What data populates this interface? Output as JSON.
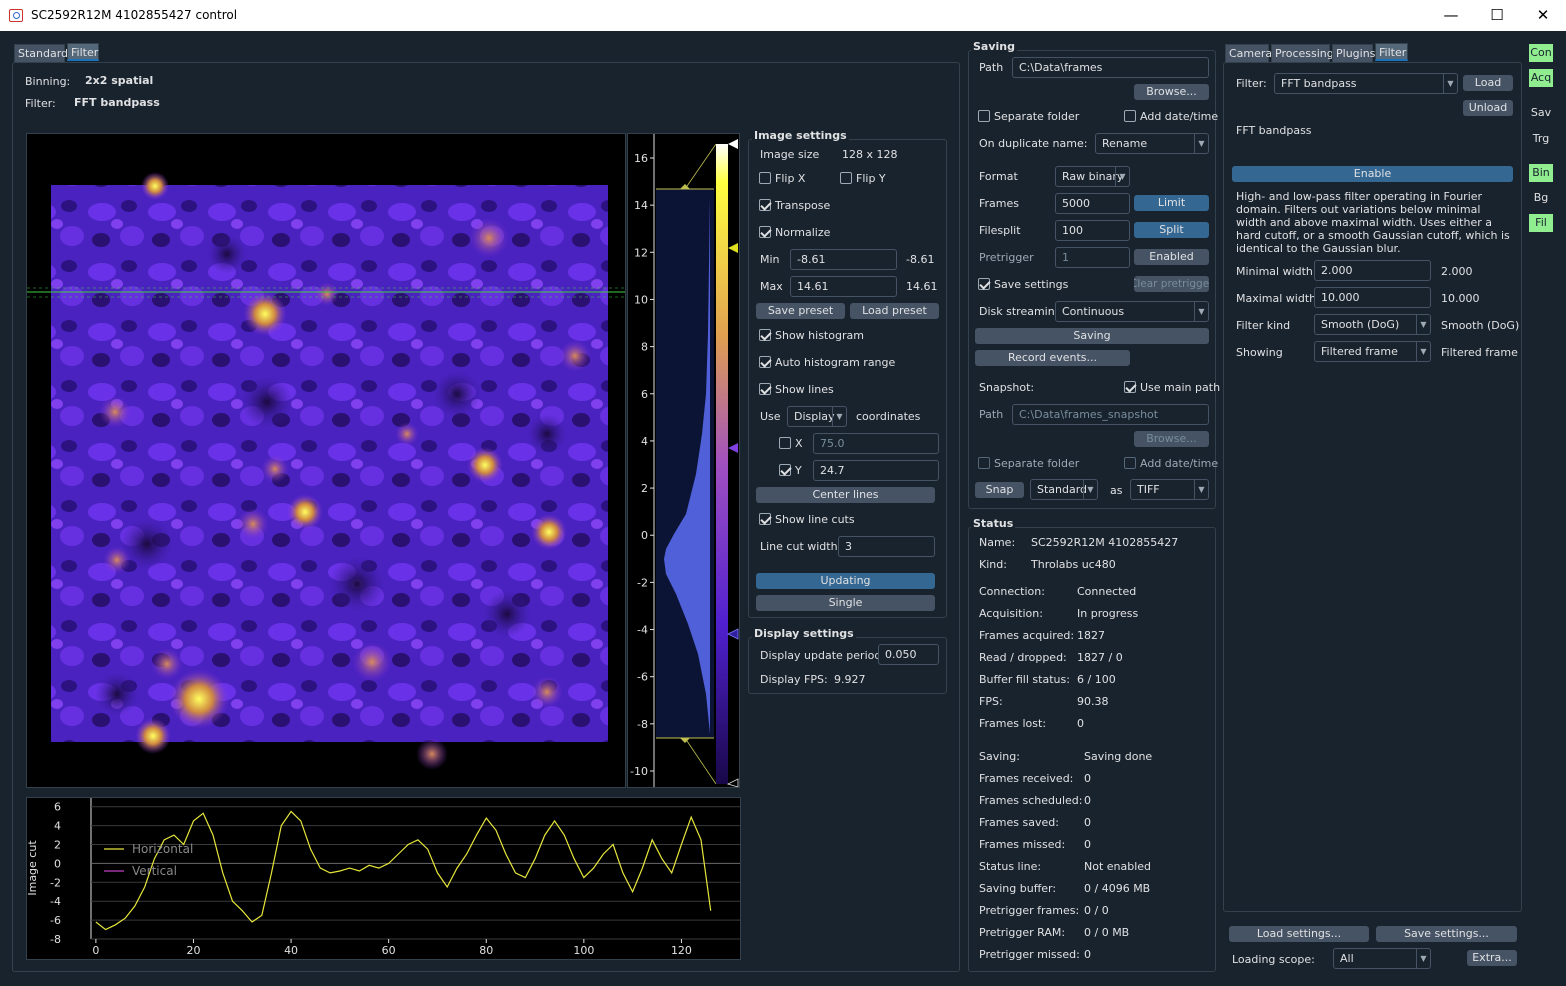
{
  "window": {
    "title": "SC2592R12M 4102855427 control"
  },
  "left_tabs": [
    "Standard",
    "Filter"
  ],
  "info": {
    "binning_label": "Binning:",
    "binning_value": "2x2 spatial",
    "filter_label": "Filter:",
    "filter_value": "FFT bandpass"
  },
  "colorbar": {
    "ticks": [
      "16",
      "14",
      "12",
      "10",
      "8",
      "6",
      "4",
      "2",
      "0",
      "-2",
      "-4",
      "-6",
      "-8",
      "-10"
    ]
  },
  "linecut": {
    "ylabel": "Image cut",
    "yticks": [
      "6",
      "4",
      "2",
      "0",
      "-2",
      "-4",
      "-6",
      "-8"
    ],
    "xticks": [
      "0",
      "20",
      "40",
      "60",
      "80",
      "100",
      "120"
    ],
    "legend": [
      {
        "name": "Horizontal",
        "color": "#e6e63c"
      },
      {
        "name": "Vertical",
        "color": "#c040c0"
      }
    ],
    "ylim": [
      -8,
      6.5
    ],
    "xlim": [
      -1,
      132
    ]
  },
  "chart_data": {
    "type": "line",
    "ylabel": "Image cut",
    "xlim": [
      -1,
      132
    ],
    "ylim": [
      -8,
      6.5
    ],
    "series": [
      {
        "name": "Horizontal",
        "x": [
          0,
          2,
          4,
          6,
          8,
          10,
          12,
          14,
          16,
          18,
          20,
          22,
          24,
          26,
          28,
          30,
          32,
          34,
          36,
          38,
          40,
          42,
          44,
          46,
          48,
          50,
          52,
          54,
          56,
          58,
          60,
          62,
          64,
          66,
          68,
          70,
          72,
          74,
          76,
          78,
          80,
          82,
          84,
          86,
          88,
          90,
          92,
          94,
          96,
          98,
          100,
          102,
          104,
          106,
          108,
          110,
          112,
          114,
          116,
          118,
          120,
          122,
          124,
          126
        ],
        "values": [
          -6.2,
          -7.0,
          -6.5,
          -5.8,
          -4.5,
          -2.5,
          0.5,
          2.5,
          3.0,
          2.0,
          4.5,
          5.3,
          3.0,
          -1.0,
          -4.0,
          -5.0,
          -6.2,
          -5.5,
          -1.0,
          4.0,
          5.5,
          4.5,
          1.5,
          -0.5,
          -1.0,
          -0.8,
          -0.5,
          -0.8,
          -0.2,
          -0.5,
          0.0,
          1.0,
          2.0,
          2.5,
          1.5,
          -1.0,
          -2.5,
          -0.5,
          1.0,
          3.0,
          4.8,
          3.5,
          1.0,
          -1.0,
          -1.5,
          0.5,
          3.0,
          4.5,
          3.0,
          0.5,
          -1.5,
          -0.5,
          1.0,
          2.0,
          -1.0,
          -3.0,
          -0.5,
          2.5,
          0.5,
          -1.0,
          2.0,
          4.9,
          2.5,
          -5.0
        ]
      },
      {
        "name": "Vertical",
        "x": [],
        "values": []
      }
    ]
  },
  "image_settings": {
    "title": "Image settings",
    "size_label": "Image size",
    "size_value": "128 x 128",
    "flipx": "Flip X",
    "flipy": "Flip Y",
    "transpose": "Transpose",
    "normalize": "Normalize",
    "min_label": "Min",
    "min_value": "-8.61",
    "min_readout": "-8.61",
    "max_label": "Max",
    "max_value": "14.61",
    "max_readout": "14.61",
    "save_preset": "Save preset",
    "load_preset": "Load preset",
    "show_histogram": "Show histogram",
    "auto_histogram": "Auto histogram range",
    "show_lines": "Show lines",
    "use_label": "Use",
    "use_value": "Display",
    "coords_label": "coordinates",
    "x_label": "X",
    "x_value": "75.0",
    "y_label": "Y",
    "y_value": "24.7",
    "center_lines": "Center lines",
    "show_line_cuts": "Show line cuts",
    "line_cut_width_label": "Line cut width",
    "line_cut_width_value": "3",
    "updating": "Updating",
    "single": "Single"
  },
  "display_settings": {
    "title": "Display settings",
    "period_label": "Display update period:",
    "period_value": "0.050",
    "fps_label": "Display FPS:",
    "fps_value": "9.927"
  },
  "saving": {
    "title": "Saving",
    "path_label": "Path",
    "path_value": "C:\\Data\\frames",
    "browse": "Browse...",
    "separate_folder": "Separate folder",
    "add_datetime": "Add date/time",
    "dup_label": "On duplicate name:",
    "dup_value": "Rename",
    "format_label": "Format",
    "format_value": "Raw binary",
    "frames_label": "Frames",
    "frames_value": "5000",
    "limit": "Limit",
    "filesplit_label": "Filesplit",
    "filesplit_value": "100",
    "split": "Split",
    "pretrigger_label": "Pretrigger",
    "pretrigger_value": "1",
    "enabled": "Enabled",
    "save_settings": "Save settings",
    "clear_pretrigger": "Clear pretrigger",
    "disk_label": "Disk streaming",
    "disk_value": "Continuous",
    "saving_btn": "Saving",
    "record_events": "Record events...",
    "snapshot_label": "Snapshot:",
    "use_main_path": "Use main path",
    "snap_path_label": "Path",
    "snap_path_value": "C:\\Data\\frames_snapshot",
    "snap_browse": "Browse...",
    "snap_separate": "Separate folder",
    "snap_datetime": "Add date/time",
    "snap_btn": "Snap",
    "snap_mode": "Standard",
    "as_label": "as",
    "snap_format": "TIFF"
  },
  "status": {
    "title": "Status",
    "rows1": [
      {
        "k": "Name:",
        "v": "SC2592R12M 4102855427"
      },
      {
        "k": "Kind:",
        "v": "Throlabs uc480"
      }
    ],
    "rows2": [
      {
        "k": "Connection:",
        "v": "Connected"
      },
      {
        "k": "Acquisition:",
        "v": "In progress"
      },
      {
        "k": "Frames acquired:",
        "v": "1827"
      },
      {
        "k": "Read / dropped:",
        "v": "1827 / 0"
      },
      {
        "k": "Buffer fill status:",
        "v": "6 / 100"
      },
      {
        "k": "FPS:",
        "v": "90.38"
      },
      {
        "k": "Frames lost:",
        "v": "0"
      }
    ],
    "rows3": [
      {
        "k": "Saving:",
        "v": "Saving done"
      },
      {
        "k": "Frames received:",
        "v": "0"
      },
      {
        "k": "Frames scheduled:",
        "v": "0"
      },
      {
        "k": "Frames saved:",
        "v": "0"
      },
      {
        "k": "Frames missed:",
        "v": "0"
      },
      {
        "k": "Status line:",
        "v": "Not enabled"
      },
      {
        "k": "Saving buffer:",
        "v": "0 / 4096 MB"
      },
      {
        "k": "Pretrigger frames:",
        "v": "0 / 0"
      },
      {
        "k": "Pretrigger RAM:",
        "v": "0 / 0 MB"
      },
      {
        "k": "Pretrigger missed:",
        "v": "0"
      }
    ]
  },
  "right_tabs": [
    "Camera",
    "Processing",
    "Plugins",
    "Filter"
  ],
  "filter_panel": {
    "filter_label": "Filter:",
    "filter_value": "FFT bandpass",
    "load": "Load",
    "unload": "Unload",
    "name": "FFT bandpass",
    "enable": "Enable",
    "description": "High- and low-pass filter operating in Fourier domain. Filters out variations below minimal width and above maximal width. Uses either a hard cutoff, or a smooth Gaussian cutoff, which is identical to the Gaussian blur.",
    "minw_label": "Minimal width",
    "minw_value": "2.000",
    "minw_readout": "2.000",
    "maxw_label": "Maximal width",
    "maxw_value": "10.000",
    "maxw_readout": "10.000",
    "kind_label": "Filter kind",
    "kind_value": "Smooth (DoG)",
    "kind_readout": "Smooth (DoG)",
    "showing_label": "Showing",
    "showing_value": "Filtered frame",
    "showing_readout": "Filtered frame"
  },
  "bottom": {
    "load_settings": "Load settings...",
    "save_settings": "Save settings...",
    "scope_label": "Loading scope:",
    "scope_value": "All",
    "extra": "Extra..."
  },
  "side_indicators": [
    {
      "label": "Con",
      "on": true
    },
    {
      "label": "Acq",
      "on": true
    },
    {
      "label": "Sav",
      "on": false
    },
    {
      "label": "Trg",
      "on": false
    },
    {
      "label": "Bin",
      "on": true
    },
    {
      "label": "Bg",
      "on": false
    },
    {
      "label": "Fil",
      "on": true
    }
  ]
}
